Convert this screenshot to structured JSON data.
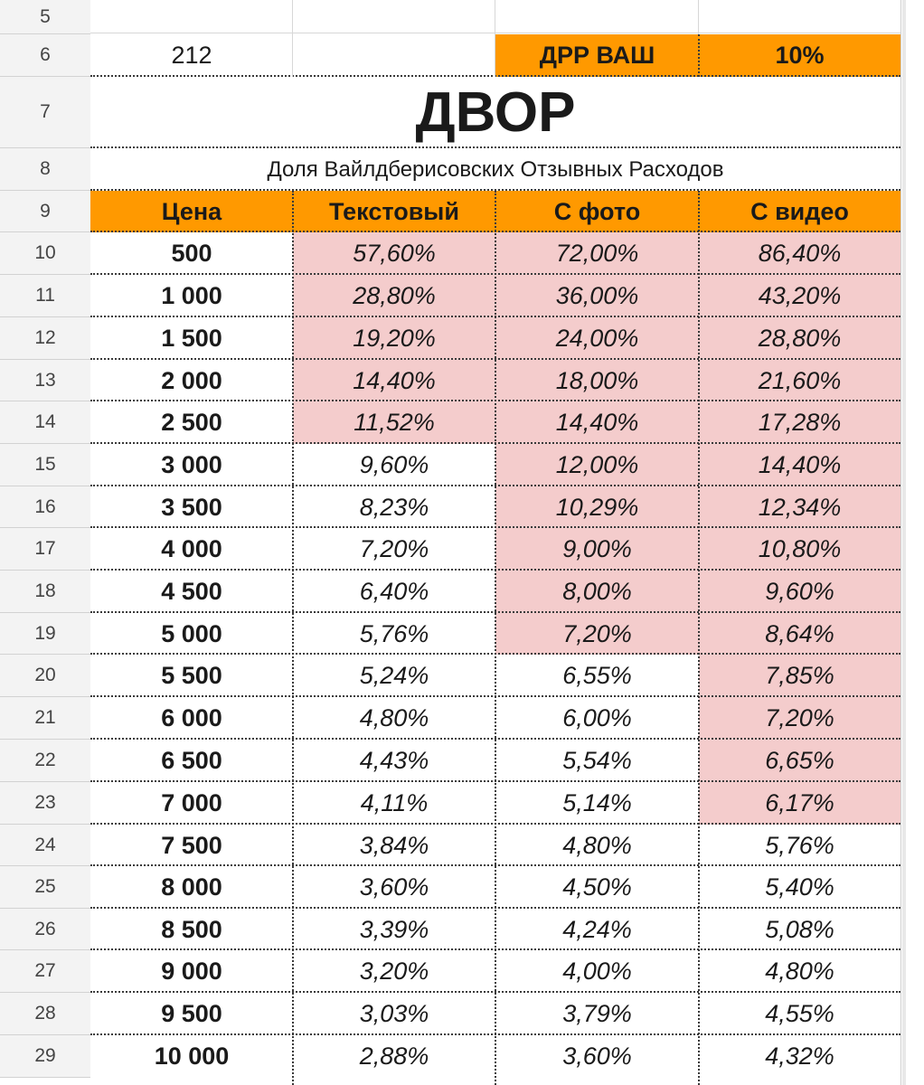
{
  "colors": {
    "header_fill": "#ff9900",
    "highlight_fill": "#f4cccc",
    "row_header_bg": "#f3f3f3"
  },
  "rows": {
    "numbers": [
      "5",
      "6",
      "7",
      "8",
      "9",
      "10",
      "11",
      "12",
      "13",
      "14",
      "15",
      "16",
      "17",
      "18",
      "19",
      "20",
      "21",
      "22",
      "23",
      "24",
      "25",
      "26",
      "27",
      "28",
      "29"
    ]
  },
  "top": {
    "value_212": "212",
    "drr_label": "ДРР ВАШ",
    "drr_value": "10%"
  },
  "title": "ДВОР",
  "subtitle": "Доля Вайлдберисовских Отзывных Расходов",
  "table": {
    "columns": [
      "Цена",
      "Текстовый",
      "С фото",
      "С видео"
    ],
    "rows": [
      {
        "price": "500",
        "text": "57,60%",
        "photo": "72,00%",
        "video": "86,40%",
        "hl": [
          true,
          true,
          true
        ]
      },
      {
        "price": "1 000",
        "text": "28,80%",
        "photo": "36,00%",
        "video": "43,20%",
        "hl": [
          true,
          true,
          true
        ]
      },
      {
        "price": "1 500",
        "text": "19,20%",
        "photo": "24,00%",
        "video": "28,80%",
        "hl": [
          true,
          true,
          true
        ]
      },
      {
        "price": "2 000",
        "text": "14,40%",
        "photo": "18,00%",
        "video": "21,60%",
        "hl": [
          true,
          true,
          true
        ]
      },
      {
        "price": "2 500",
        "text": "11,52%",
        "photo": "14,40%",
        "video": "17,28%",
        "hl": [
          true,
          true,
          true
        ]
      },
      {
        "price": "3 000",
        "text": "9,60%",
        "photo": "12,00%",
        "video": "14,40%",
        "hl": [
          false,
          true,
          true
        ]
      },
      {
        "price": "3 500",
        "text": "8,23%",
        "photo": "10,29%",
        "video": "12,34%",
        "hl": [
          false,
          true,
          true
        ]
      },
      {
        "price": "4 000",
        "text": "7,20%",
        "photo": "9,00%",
        "video": "10,80%",
        "hl": [
          false,
          true,
          true
        ]
      },
      {
        "price": "4 500",
        "text": "6,40%",
        "photo": "8,00%",
        "video": "9,60%",
        "hl": [
          false,
          true,
          true
        ]
      },
      {
        "price": "5 000",
        "text": "5,76%",
        "photo": "7,20%",
        "video": "8,64%",
        "hl": [
          false,
          true,
          true
        ]
      },
      {
        "price": "5 500",
        "text": "5,24%",
        "photo": "6,55%",
        "video": "7,85%",
        "hl": [
          false,
          false,
          true
        ]
      },
      {
        "price": "6 000",
        "text": "4,80%",
        "photo": "6,00%",
        "video": "7,20%",
        "hl": [
          false,
          false,
          true
        ]
      },
      {
        "price": "6 500",
        "text": "4,43%",
        "photo": "5,54%",
        "video": "6,65%",
        "hl": [
          false,
          false,
          true
        ]
      },
      {
        "price": "7 000",
        "text": "4,11%",
        "photo": "5,14%",
        "video": "6,17%",
        "hl": [
          false,
          false,
          true
        ]
      },
      {
        "price": "7 500",
        "text": "3,84%",
        "photo": "4,80%",
        "video": "5,76%",
        "hl": [
          false,
          false,
          false
        ]
      },
      {
        "price": "8 000",
        "text": "3,60%",
        "photo": "4,50%",
        "video": "5,40%",
        "hl": [
          false,
          false,
          false
        ]
      },
      {
        "price": "8 500",
        "text": "3,39%",
        "photo": "4,24%",
        "video": "5,08%",
        "hl": [
          false,
          false,
          false
        ]
      },
      {
        "price": "9 000",
        "text": "3,20%",
        "photo": "4,00%",
        "video": "4,80%",
        "hl": [
          false,
          false,
          false
        ]
      },
      {
        "price": "9 500",
        "text": "3,03%",
        "photo": "3,79%",
        "video": "4,55%",
        "hl": [
          false,
          false,
          false
        ]
      },
      {
        "price": "10 000",
        "text": "2,88%",
        "photo": "3,60%",
        "video": "4,32%",
        "hl": [
          false,
          false,
          false
        ]
      }
    ]
  }
}
